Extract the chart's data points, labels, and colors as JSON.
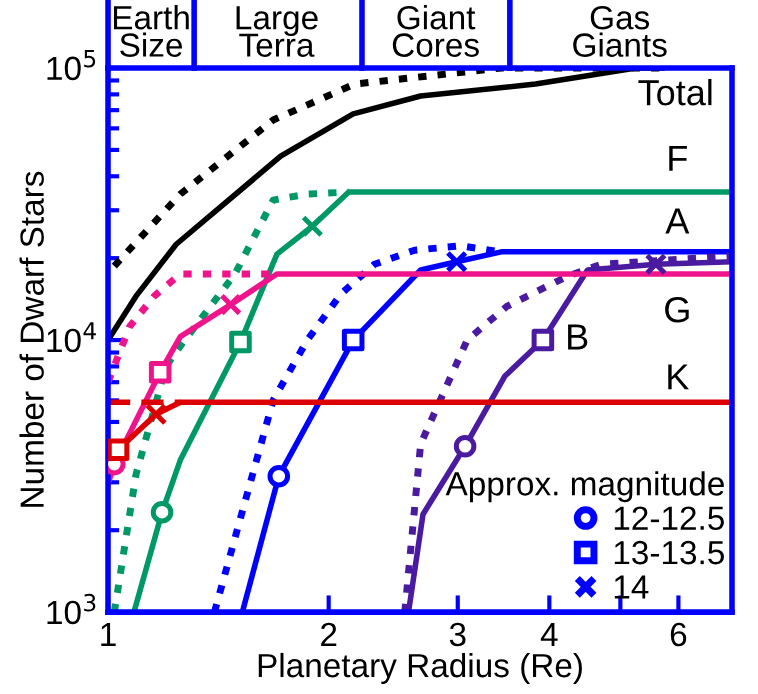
{
  "chart_data": {
    "type": "line",
    "xlabel": "Planetary Radius (Re)",
    "ylabel": "Number of Dwarf Stars",
    "legend_title": "Approx. magnitude",
    "log": "xy",
    "xlim": [
      1,
      7.1
    ],
    "ylim": [
      1000,
      100000
    ],
    "xticks": [
      1,
      2,
      3,
      4,
      {
        "value": 5,
        "label": null
      },
      6
    ],
    "yticks": [
      {
        "value": 1000,
        "label": "10$^{3}$"
      },
      {
        "value": 10000,
        "label": "10$^{4}$"
      },
      {
        "value": 100000,
        "label": "10$^{5}$"
      }
    ],
    "grid": false,
    "legend": "bottom right",
    "annotations": [
      "Earth\nSize",
      "Large\nTerra",
      "Giant\nCores",
      "Gas\nGiants",
      {
        "text": "Total",
        "x": 5.5,
        "y": 100000
      },
      {
        "text": "F",
        "x": 5.98,
        "y": 35000
      },
      {
        "text": "A",
        "x": 5.98,
        "y": 21100
      },
      {
        "text": "G",
        "x": 5.98,
        "y": 17500
      },
      {
        "text": "K",
        "x": 5.98,
        "y": 5910
      },
      {
        "text": "B",
        "x": 3.92,
        "y": 10000
      }
    ],
    "series": [
      {
        "color": "#000000",
        "line_style": "dotted",
        "x": [
          1.02,
          1.255,
          1.68,
          2.17,
          3.44,
          5.7
        ],
        "values": [
          18700,
          34400,
          64400,
          87300,
          100000,
          100000
        ]
      },
      {
        "color": "#000000",
        "line_style": "solid",
        "x": [
          1,
          1.092,
          1.239,
          1.72,
          2.16,
          2.67,
          3.83,
          5.25,
          5.7
        ],
        "values": [
          10000,
          14500,
          22500,
          47400,
          67800,
          78900,
          87300,
          100000,
          100000
        ]
      },
      {
        "color": "#009966",
        "line_style": "dotted",
        "x": [
          1.02,
          1.092,
          1.2,
          1.255,
          1.49,
          1.68,
          1.87,
          2.13
        ],
        "values": [
          1000,
          3210,
          8010,
          9500,
          17500,
          32700,
          34400,
          35000
        ]
      },
      {
        "color": "#009966",
        "line_style": "solid",
        "x": [
          1.085,
          1.185,
          1.255,
          1.516,
          1.7,
          1.9,
          2.13,
          7.1
        ],
        "values": [
          1000,
          2330,
          3620,
          9840,
          20700,
          26200,
          35000,
          35000
        ]
      },
      {
        "color": "#0000ff",
        "line_style": "dotted",
        "x": [
          1.397,
          1.68,
          1.87,
          2.08,
          2.31,
          2.62,
          3.03,
          3.44
        ],
        "values": [
          1000,
          6010,
          10000,
          14800,
          19000,
          21400,
          22200,
          21100
        ]
      },
      {
        "color": "#0000ff",
        "line_style": "solid",
        "x": [
          1.525,
          1.71,
          2.16,
          2.67,
          2.99,
          3.44,
          7.1
        ],
        "values": [
          1000,
          3160,
          10000,
          18100,
          19400,
          21100,
          21100
        ]
      },
      {
        "color": "#4a1aa0",
        "line_style": "dotted",
        "x": [
          2.54,
          2.67,
          3.09,
          3.5,
          4.24,
          4.71,
          7.1
        ],
        "values": [
          1000,
          4150,
          10000,
          13300,
          17200,
          19000,
          20400
        ]
      },
      {
        "color": "#4a1aa0",
        "line_style": "solid",
        "x": [
          2.57,
          2.69,
          3.07,
          3.48,
          3.92,
          4.51,
          5.59,
          7.1
        ],
        "values": [
          1000,
          2290,
          4070,
          7380,
          10000,
          18100,
          19000,
          19400
        ]
      },
      {
        "color": "#f0148c",
        "line_style": "dotted",
        "x": [
          1.0,
          1.07,
          1.156,
          1.255,
          1.7
        ],
        "values": [
          7000,
          11200,
          14500,
          17500,
          17500
        ]
      },
      {
        "color": "#f0148c",
        "line_style": "solid",
        "x": [
          1.0,
          1.02,
          1.178,
          1.255,
          1.47,
          1.7,
          7.1
        ],
        "values": [
          2960,
          3500,
          7620,
          10300,
          13500,
          17500,
          17500
        ]
      },
      {
        "color": "#dd0000",
        "line_style": "dashed",
        "x": [
          1.0,
          1.255
        ],
        "values": [
          5910,
          5910
        ]
      },
      {
        "color": "#dd0000",
        "line_style": "solid",
        "x": [
          1.0,
          1.032,
          1.163,
          1.255,
          7.1
        ],
        "values": [
          3600,
          3950,
          5340,
          5910,
          5910
        ]
      },
      {
        "type": "scatter",
        "name": "12-12.5",
        "marker": "circle",
        "color": "#0000ff",
        "x": [
          1.185,
          1.71,
          3.07,
          1.02
        ],
        "values": [
          2330,
          3160,
          4070,
          3500
        ],
        "colors": [
          "#009966",
          "#0000ff",
          "#4a1aa0",
          "#f0148c"
        ]
      },
      {
        "type": "scatter",
        "name": "13-13.5",
        "marker": "square",
        "color": "#0000ff",
        "x": [
          1.516,
          2.16,
          3.92,
          1.178,
          1.032
        ],
        "values": [
          9840,
          10000,
          10000,
          7620,
          3950
        ],
        "colors": [
          "#009966",
          "#0000ff",
          "#4a1aa0",
          "#f0148c",
          "#dd0000"
        ]
      },
      {
        "type": "scatter",
        "name": "14",
        "marker": "cross",
        "color": "#0000ff",
        "x": [
          1.9,
          2.99,
          5.59,
          1.47,
          1.163
        ],
        "values": [
          26200,
          19400,
          19000,
          13500,
          5340
        ],
        "colors": [
          "#009966",
          "#0000ff",
          "#4a1aa0",
          "#f0148c",
          "#dd0000"
        ]
      }
    ]
  }
}
